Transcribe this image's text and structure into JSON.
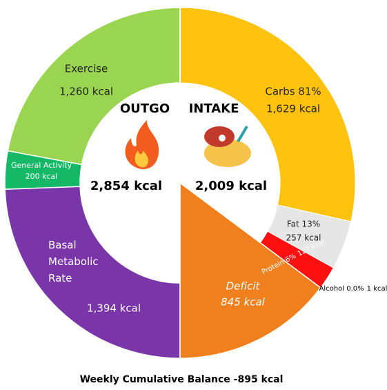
{
  "chart_data": {
    "type": "donut",
    "title": "Weekly Cumulative Balance -895 kcal",
    "halves": [
      {
        "heading": "OUTGO",
        "total_label": "2,854 kcal",
        "segments": [
          {
            "name": "Exercise",
            "value": 1260,
            "value_label": "1,260 kcal",
            "color": "#9ad552"
          },
          {
            "name": "General Activity",
            "value": 200,
            "value_label": "200 kcal",
            "color": "#14b866"
          },
          {
            "name": "Basal Metabolic Rate",
            "value": 1394,
            "value_label": "1,394 kcal",
            "color": "#7a35a8"
          }
        ]
      },
      {
        "heading": "INTAKE",
        "total_label": "2,009 kcal",
        "segments": [
          {
            "name": "Carbs 81%",
            "value": 1629,
            "value_label": "1,629 kcal",
            "color": "#ffc20e"
          },
          {
            "name": "Fat 13%",
            "value": 257,
            "value_label": "257 kcal",
            "color": "#e6e6e6"
          },
          {
            "name": "Protein 6%",
            "value": 122,
            "value_label": "122 kcal",
            "color": "#ff1010"
          },
          {
            "name": "Alcohol 0.0%",
            "value": 1,
            "value_label": "1 kcal",
            "color": "#c00000"
          }
        ],
        "deficit": {
          "name": "Deficit",
          "value": 845,
          "value_label": "845 kcal",
          "color": "#f0801e"
        }
      }
    ]
  }
}
